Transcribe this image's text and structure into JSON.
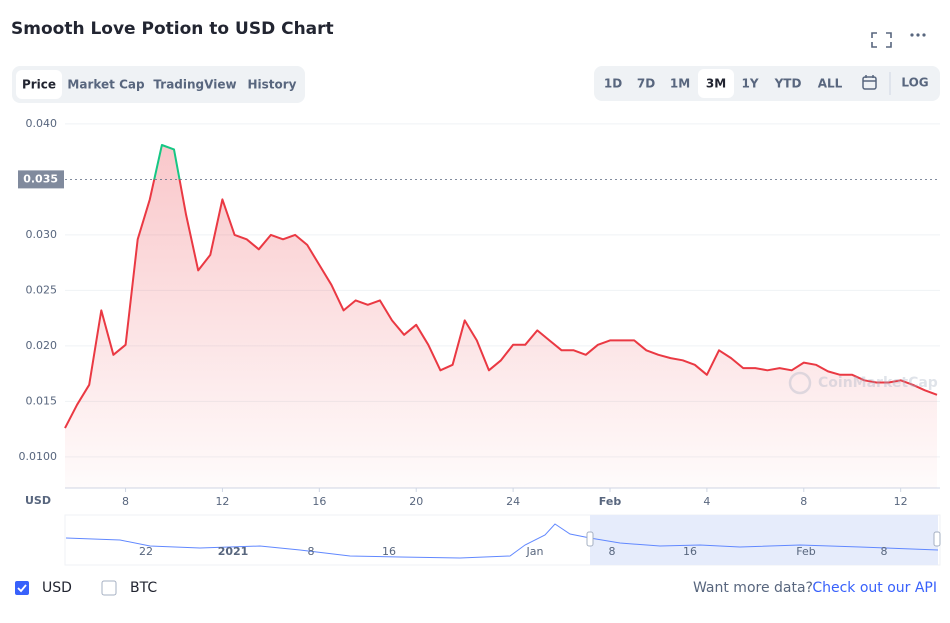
{
  "ui": {
    "title": "Smooth Love Potion to USD Chart",
    "tabs": [
      "Price",
      "Market Cap",
      "TradingView",
      "History"
    ],
    "ranges": [
      "1D",
      "7D",
      "1M",
      "3M",
      "1Y",
      "YTD",
      "ALL"
    ],
    "log": "LOG",
    "watermark": "CoinMarketCap",
    "navigator_labels": [
      "22",
      "2021",
      "8",
      "16",
      "Jan",
      "8",
      "16",
      "Feb",
      "8"
    ],
    "checkboxes": [
      "USD",
      "BTC"
    ],
    "footer_text": "Want more data?",
    "footer_link": "Check out our API"
  },
  "chart_data": {
    "type": "line",
    "y_label": "USD",
    "categories": [
      null,
      null,
      null,
      null,
      null,
      "8",
      null,
      null,
      null,
      null,
      null,
      null,
      null,
      "12",
      null,
      null,
      null,
      null,
      null,
      null,
      null,
      "16",
      null,
      null,
      null,
      null,
      null,
      null,
      null,
      "20",
      null,
      null,
      null,
      null,
      null,
      null,
      null,
      "24",
      null,
      null,
      null,
      null,
      null,
      null,
      null,
      "Feb",
      null,
      null,
      null,
      null,
      null,
      null,
      null,
      "4",
      null,
      null,
      null,
      null,
      null,
      null,
      null,
      "8",
      null,
      null,
      null,
      null,
      null,
      null,
      null,
      "12",
      null,
      null,
      null
    ],
    "series": [
      {
        "name": "USD",
        "color": "#ea3943",
        "color_above": "#16c784",
        "values": [
          0.0126,
          0.0147,
          0.0165,
          0.0232,
          0.0192,
          0.0201,
          0.0296,
          0.0332,
          0.0381,
          0.0377,
          0.0318,
          0.0268,
          0.0282,
          0.0332,
          0.03,
          0.0296,
          0.0287,
          0.03,
          0.0296,
          0.03,
          0.0291,
          0.0273,
          0.0255,
          0.0232,
          0.0241,
          0.0237,
          0.0241,
          0.0223,
          0.021,
          0.0219,
          0.0201,
          0.0178,
          0.0183,
          0.0223,
          0.0205,
          0.0178,
          0.0187,
          0.0201,
          0.0201,
          0.0214,
          0.0205,
          0.0196,
          0.0196,
          0.0192,
          0.0201,
          0.0205,
          0.0205,
          0.0205,
          0.0196,
          0.0192,
          0.0189,
          0.0187,
          0.0183,
          0.0174,
          0.0196,
          0.0189,
          0.018,
          0.018,
          0.0178,
          0.018,
          0.0178,
          0.0185,
          0.0183,
          0.0177,
          0.0174,
          0.0174,
          0.0169,
          0.0167,
          0.0167,
          0.0169,
          0.0165,
          0.016,
          0.0156
        ]
      }
    ],
    "reference": {
      "value": 0.035,
      "label": "0.035"
    },
    "ylim": [
      0.0072,
      0.0408
    ],
    "yticks": [
      {
        "value": 0.01,
        "label": "0.0100"
      },
      0.015,
      {
        "value": 0.02,
        "label": "0.020"
      },
      0.025,
      {
        "value": 0.03,
        "label": "0.030"
      },
      {
        "value": 0.04,
        "label": "0.040"
      }
    ],
    "grid": true
  }
}
